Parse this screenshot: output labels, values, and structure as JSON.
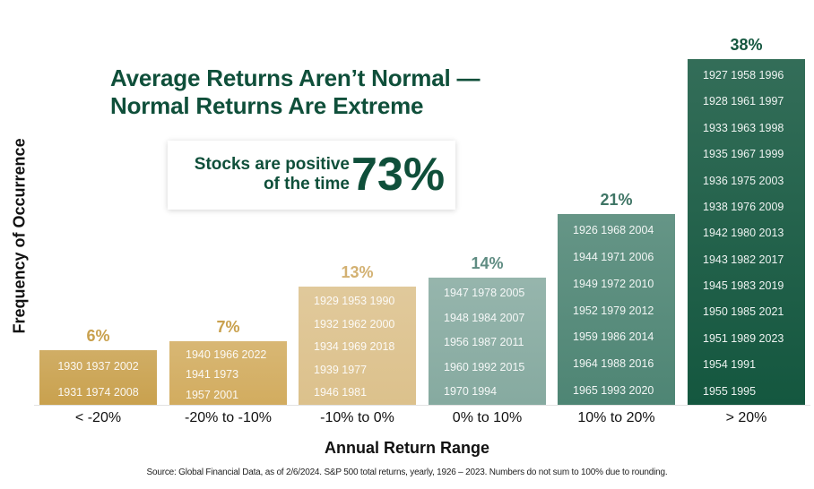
{
  "chart_data": {
    "type": "bar",
    "title": "Average Returns Aren’t Normal — Normal Returns Are Extreme",
    "title_lines": [
      "Average Returns Aren’t Normal —",
      "Normal Returns Are Extreme"
    ],
    "xlabel": "Annual Return Range",
    "ylabel": "Frequency of Occurrence",
    "ylim": [
      0,
      38
    ],
    "categories": [
      "< -20%",
      "-20% to -10%",
      "-10% to 0%",
      "0% to 10%",
      "10% to 20%",
      "> 20%"
    ],
    "values": [
      6,
      7,
      13,
      14,
      21,
      38
    ],
    "value_labels": [
      "6%",
      "7%",
      "13%",
      "14%",
      "21%",
      "38%"
    ],
    "bar_colors": [
      "#c9a14e",
      "#d2ac5f",
      "#dcc18c",
      "#86aaa0",
      "#4e8574",
      "#14573f"
    ],
    "label_colors": [
      "#c9a14e",
      "#c9a14e",
      "#d3b172",
      "#5f8c82",
      "#3f7565",
      "#14573f"
    ],
    "years": [
      [
        "1930 1937 2002",
        "1931 1974 2008"
      ],
      [
        "1940 1966 2022",
        "1941 1973",
        "1957 2001"
      ],
      [
        "1929 1953 1990",
        "1932 1962 2000",
        "1934 1969 2018",
        "1939 1977",
        "1946 1981"
      ],
      [
        "1947 1978 2005",
        "1948 1984 2007",
        "1956 1987 2011",
        "1960 1992 2015",
        "1970 1994"
      ],
      [
        "1926 1968 2004",
        "1944 1971 2006",
        "1949 1972 2010",
        "1952 1979 2012",
        "1959 1986 2014",
        "1964 1988 2016",
        "1965 1993 2020"
      ],
      [
        "1927 1958 1996",
        "1928 1961 1997",
        "1933 1963 1998",
        "1935 1967 1999",
        "1936 1975 2003",
        "1938 1976 2009",
        "1942 1980 2013",
        "1943 1982 2017",
        "1945 1983 2019",
        "1950 1985 2021",
        "1951 1989 2023",
        "1954 1991",
        "1955 1995"
      ]
    ],
    "grid": false,
    "legend": "none",
    "annotations": [
      "Stocks are positive of the time 73%"
    ]
  },
  "callout": {
    "line1": "Stocks are positive",
    "line2": "of the time",
    "value": "73%"
  },
  "source": "Source: Global Financial Data, as of 2/6/2024. S&P 500 total returns, yearly, 1926 – 2023. Numbers do not sum to 100% due to rounding.",
  "colors": {
    "brand_green": "#0f4f3a",
    "gold": "#c9a14e"
  }
}
